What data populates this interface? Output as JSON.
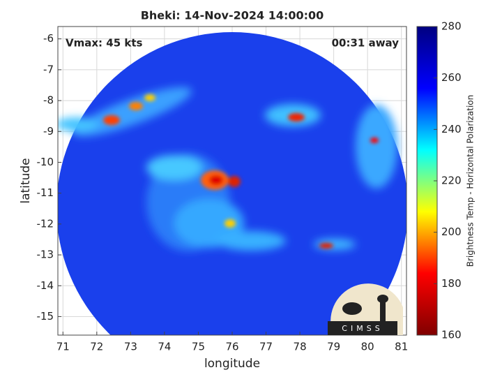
{
  "chart_data": {
    "type": "image",
    "title": "Bheki: 14-Nov-2024 14:00:00",
    "xlabel": "longitude",
    "ylabel": "latitude",
    "xlim": [
      70.85,
      81.15
    ],
    "xticks": [
      71,
      72,
      73,
      74,
      75,
      76,
      77,
      78,
      79,
      80,
      81
    ],
    "ylim": [
      -15.6,
      -5.6
    ],
    "yticks": [
      -15,
      -14,
      -13,
      -12,
      -11,
      -10,
      -9,
      -8,
      -7,
      -6
    ],
    "grid": true,
    "annotations": [
      "Vmax: 45 kts",
      "00:31 away"
    ],
    "colorbar": {
      "label": "Brightness Temp - Horizontal Polarization",
      "lim": [
        160,
        280
      ],
      "ticks": [
        160,
        180,
        200,
        220,
        240,
        260,
        280
      ],
      "colors": [
        "#800000",
        "#ff0000",
        "#ffff00",
        "#00ffff",
        "#0000ff",
        "#000080"
      ]
    }
  },
  "logo": {
    "text": "CIMSS"
  }
}
